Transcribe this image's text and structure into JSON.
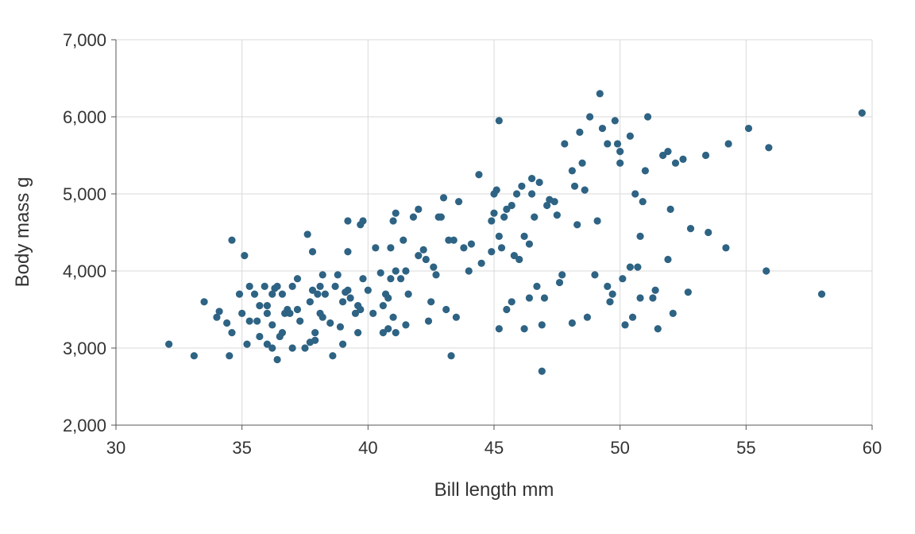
{
  "chart_data": {
    "type": "scatter",
    "xlabel": "Bill length mm",
    "ylabel": "Body mass g",
    "xlim": [
      30,
      60
    ],
    "ylim": [
      2000,
      7000
    ],
    "x_ticks": [
      30,
      35,
      40,
      45,
      50,
      55,
      60
    ],
    "y_ticks": [
      2000,
      3000,
      4000,
      5000,
      6000,
      7000
    ],
    "x_tick_labels": [
      "30",
      "35",
      "40",
      "45",
      "50",
      "55",
      "60"
    ],
    "y_tick_labels": [
      "2,000",
      "3,000",
      "4,000",
      "5,000",
      "6,000",
      "7,000"
    ],
    "grid": true,
    "legend": "none",
    "marker_color": "#2e6384",
    "points": [
      [
        32.1,
        3050
      ],
      [
        33.1,
        2900
      ],
      [
        33.5,
        3600
      ],
      [
        34.0,
        3400
      ],
      [
        34.1,
        3475
      ],
      [
        34.4,
        3325
      ],
      [
        34.5,
        2900
      ],
      [
        34.6,
        4400
      ],
      [
        34.6,
        3200
      ],
      [
        35.0,
        3450
      ],
      [
        35.1,
        4200
      ],
      [
        35.2,
        3050
      ],
      [
        35.3,
        3800
      ],
      [
        35.5,
        3700
      ],
      [
        35.6,
        3350
      ],
      [
        35.7,
        3150
      ],
      [
        35.7,
        3550
      ],
      [
        35.9,
        3800
      ],
      [
        36.0,
        3050
      ],
      [
        36.0,
        3450
      ],
      [
        36.2,
        3300
      ],
      [
        36.2,
        3700
      ],
      [
        36.3,
        3775
      ],
      [
        36.4,
        2850
      ],
      [
        36.5,
        3150
      ],
      [
        36.6,
        3700
      ],
      [
        36.7,
        3450
      ],
      [
        36.8,
        3500
      ],
      [
        36.9,
        3450
      ],
      [
        37.0,
        3000
      ],
      [
        37.2,
        3900
      ],
      [
        37.3,
        3350
      ],
      [
        37.5,
        3000
      ],
      [
        37.6,
        4475
      ],
      [
        37.7,
        3600
      ],
      [
        37.8,
        3750
      ],
      [
        37.8,
        4250
      ],
      [
        37.9,
        3200
      ],
      [
        38.0,
        3700
      ],
      [
        38.1,
        3800
      ],
      [
        38.2,
        3950
      ],
      [
        38.2,
        3400
      ],
      [
        38.5,
        3325
      ],
      [
        38.6,
        2900
      ],
      [
        38.7,
        3800
      ],
      [
        38.8,
        3950
      ],
      [
        39.0,
        3600
      ],
      [
        39.1,
        3725
      ],
      [
        39.2,
        4650
      ],
      [
        39.2,
        4250
      ],
      [
        39.5,
        3450
      ],
      [
        39.6,
        3200
      ],
      [
        39.7,
        4600
      ],
      [
        39.8,
        4650
      ],
      [
        39.8,
        3900
      ],
      [
        40.2,
        3450
      ],
      [
        40.3,
        4300
      ],
      [
        40.5,
        3975
      ],
      [
        40.6,
        3550
      ],
      [
        40.7,
        3700
      ],
      [
        40.8,
        3250
      ],
      [
        40.9,
        4300
      ],
      [
        41.0,
        4650
      ],
      [
        41.1,
        3200
      ],
      [
        41.1,
        4750
      ],
      [
        41.3,
        3900
      ],
      [
        41.4,
        4400
      ],
      [
        41.5,
        4000
      ],
      [
        41.8,
        4700
      ],
      [
        42.0,
        4200
      ],
      [
        42.2,
        4275
      ],
      [
        42.5,
        3600
      ],
      [
        42.7,
        3950
      ],
      [
        42.8,
        4700
      ],
      [
        43.0,
        4950
      ],
      [
        43.1,
        3500
      ],
      [
        43.2,
        4400
      ],
      [
        43.3,
        2900
      ],
      [
        43.5,
        3400
      ],
      [
        43.6,
        4900
      ],
      [
        44.0,
        4000
      ],
      [
        44.4,
        5250
      ],
      [
        44.5,
        4100
      ],
      [
        45.0,
        4750
      ],
      [
        45.1,
        5050
      ],
      [
        45.2,
        5950
      ],
      [
        45.2,
        3250
      ],
      [
        45.3,
        4300
      ],
      [
        45.5,
        3500
      ],
      [
        45.5,
        4800
      ],
      [
        45.7,
        3600
      ],
      [
        45.8,
        4200
      ],
      [
        46.0,
        4150
      ],
      [
        46.1,
        5100
      ],
      [
        46.2,
        3250
      ],
      [
        46.4,
        4350
      ],
      [
        46.5,
        5000
      ],
      [
        46.7,
        3800
      ],
      [
        46.8,
        5150
      ],
      [
        46.9,
        2700
      ],
      [
        47.0,
        3650
      ],
      [
        47.2,
        4925
      ],
      [
        47.5,
        4725
      ],
      [
        47.6,
        3850
      ],
      [
        47.8,
        5650
      ],
      [
        48.1,
        3325
      ],
      [
        48.2,
        5100
      ],
      [
        48.5,
        5400
      ],
      [
        48.7,
        3400
      ],
      [
        48.8,
        6000
      ],
      [
        49.0,
        3950
      ],
      [
        49.2,
        6300
      ],
      [
        49.3,
        5850
      ],
      [
        49.5,
        3800
      ],
      [
        49.6,
        3600
      ],
      [
        49.8,
        5950
      ],
      [
        50.0,
        5400
      ],
      [
        50.1,
        3900
      ],
      [
        50.2,
        3300
      ],
      [
        50.4,
        5750
      ],
      [
        50.5,
        3400
      ],
      [
        50.7,
        4050
      ],
      [
        50.8,
        4450
      ],
      [
        51.0,
        5300
      ],
      [
        51.1,
        6000
      ],
      [
        51.3,
        3650
      ],
      [
        51.5,
        3250
      ],
      [
        51.7,
        5500
      ],
      [
        52.0,
        4800
      ],
      [
        52.2,
        5400
      ],
      [
        52.5,
        5450
      ],
      [
        52.8,
        4550
      ],
      [
        53.4,
        5500
      ],
      [
        53.5,
        4500
      ],
      [
        54.2,
        4300
      ],
      [
        54.3,
        5650
      ],
      [
        55.1,
        5850
      ],
      [
        55.8,
        4000
      ],
      [
        55.9,
        5600
      ],
      [
        58.0,
        3700
      ],
      [
        59.6,
        6050
      ],
      [
        36.4,
        3800
      ],
      [
        37.7,
        3075
      ],
      [
        39.3,
        3650
      ],
      [
        40.9,
        3900
      ],
      [
        42.3,
        4150
      ],
      [
        44.1,
        4350
      ],
      [
        45.4,
        4700
      ],
      [
        46.2,
        4450
      ],
      [
        47.4,
        4900
      ],
      [
        48.4,
        5800
      ],
      [
        49.1,
        4650
      ],
      [
        50.0,
        5550
      ],
      [
        50.9,
        4900
      ],
      [
        51.4,
        3750
      ],
      [
        52.1,
        3450
      ],
      [
        46.6,
        4700
      ],
      [
        45.9,
        5000
      ],
      [
        44.9,
        4250
      ],
      [
        43.8,
        4300
      ],
      [
        41.6,
        3700
      ],
      [
        40.0,
        3750
      ],
      [
        38.9,
        3275
      ],
      [
        37.0,
        3800
      ],
      [
        36.0,
        3550
      ],
      [
        35.3,
        3350
      ],
      [
        39.0,
        3050
      ],
      [
        40.6,
        3200
      ],
      [
        42.0,
        4800
      ],
      [
        42.9,
        4700
      ],
      [
        45.0,
        5000
      ],
      [
        47.1,
        4850
      ],
      [
        48.6,
        5050
      ],
      [
        49.5,
        5650
      ],
      [
        50.6,
        5000
      ],
      [
        51.9,
        5550
      ],
      [
        49.9,
        5650
      ],
      [
        48.3,
        4600
      ],
      [
        46.5,
        5200
      ],
      [
        45.7,
        4850
      ],
      [
        44.9,
        4650
      ],
      [
        42.6,
        4050
      ],
      [
        41.1,
        4000
      ],
      [
        39.6,
        3550
      ],
      [
        38.3,
        3700
      ],
      [
        37.2,
        3500
      ],
      [
        36.6,
        3200
      ],
      [
        38.1,
        3450
      ],
      [
        39.7,
        3500
      ],
      [
        40.8,
        3650
      ],
      [
        41.5,
        3300
      ],
      [
        46.4,
        3650
      ],
      [
        46.9,
        3300
      ],
      [
        47.7,
        3950
      ],
      [
        49.7,
        3700
      ],
      [
        50.4,
        4050
      ],
      [
        51.9,
        4150
      ],
      [
        52.7,
        3725
      ],
      [
        50.8,
        3650
      ],
      [
        48.1,
        5300
      ],
      [
        45.2,
        4450
      ],
      [
        43.4,
        4400
      ],
      [
        42.4,
        3350
      ],
      [
        41.0,
        3400
      ],
      [
        39.2,
        3750
      ],
      [
        37.9,
        3100
      ],
      [
        36.2,
        3000
      ],
      [
        34.9,
        3700
      ]
    ]
  }
}
